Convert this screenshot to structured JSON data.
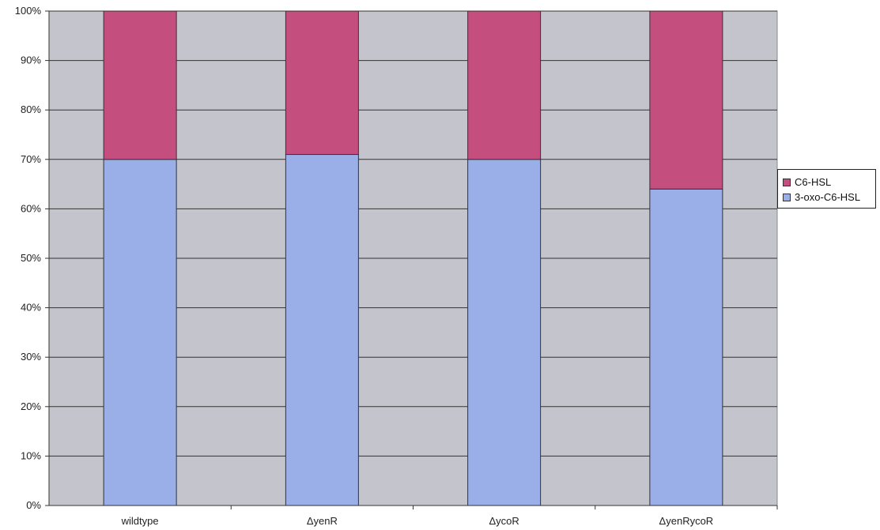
{
  "chart_data": {
    "type": "bar",
    "stacked": true,
    "categories": [
      "wildtype",
      "ΔyenR",
      "ΔycoR",
      "ΔyenRycoR"
    ],
    "series": [
      {
        "name": "3-oxo-C6-HSL",
        "values": [
          70,
          71,
          70,
          64
        ],
        "color": "#9aaee8"
      },
      {
        "name": "C6-HSL",
        "values": [
          30,
          29,
          30,
          36
        ],
        "color": "#c44f7f"
      }
    ],
    "ylim": [
      0,
      100
    ],
    "yticks": [
      "0%",
      "10%",
      "20%",
      "30%",
      "40%",
      "50%",
      "60%",
      "70%",
      "80%",
      "90%",
      "100%"
    ],
    "grid": true,
    "legend": "right",
    "plot_background": "#c4c4cc"
  }
}
